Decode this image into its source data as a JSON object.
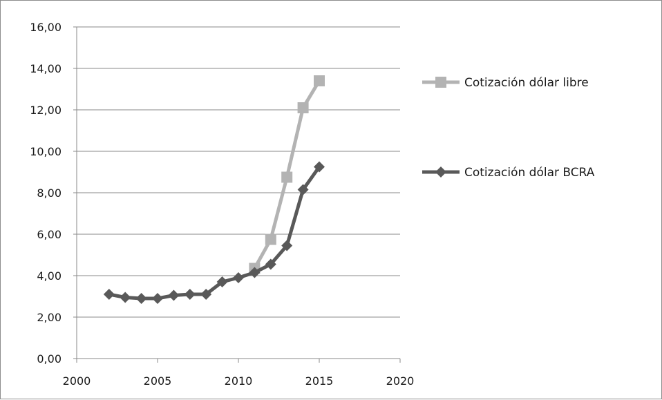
{
  "chart_data": {
    "type": "scatter",
    "title": "",
    "xlabel": "",
    "ylabel": "",
    "xlim": [
      2000,
      2020
    ],
    "ylim": [
      0,
      16
    ],
    "x_ticks": [
      2000,
      2005,
      2010,
      2015,
      2020
    ],
    "x_tick_labels": [
      "2000",
      "2005",
      "2010",
      "2015",
      "2020"
    ],
    "y_ticks": [
      0,
      2,
      4,
      6,
      8,
      10,
      12,
      14,
      16
    ],
    "y_tick_labels": [
      "0,00",
      "2,00",
      "4,00",
      "6,00",
      "8,00",
      "10,00",
      "12,00",
      "14,00",
      "16,00"
    ],
    "grid": "horizontal",
    "legend_position": "right",
    "series": [
      {
        "name": "Cotización dólar libre",
        "color": "#b3b3b3",
        "marker": "square",
        "x": [
          2011,
          2012,
          2013,
          2014,
          2015
        ],
        "y": [
          4.35,
          5.75,
          8.75,
          12.1,
          13.4
        ]
      },
      {
        "name": "Cotización dólar BCRA",
        "color": "#595959",
        "marker": "diamond",
        "x": [
          2002,
          2003,
          2004,
          2005,
          2006,
          2007,
          2008,
          2009,
          2010,
          2011,
          2012,
          2013,
          2014,
          2015
        ],
        "y": [
          3.1,
          2.95,
          2.9,
          2.9,
          3.05,
          3.1,
          3.1,
          3.7,
          3.9,
          4.15,
          4.55,
          5.45,
          8.15,
          9.25
        ]
      }
    ]
  }
}
